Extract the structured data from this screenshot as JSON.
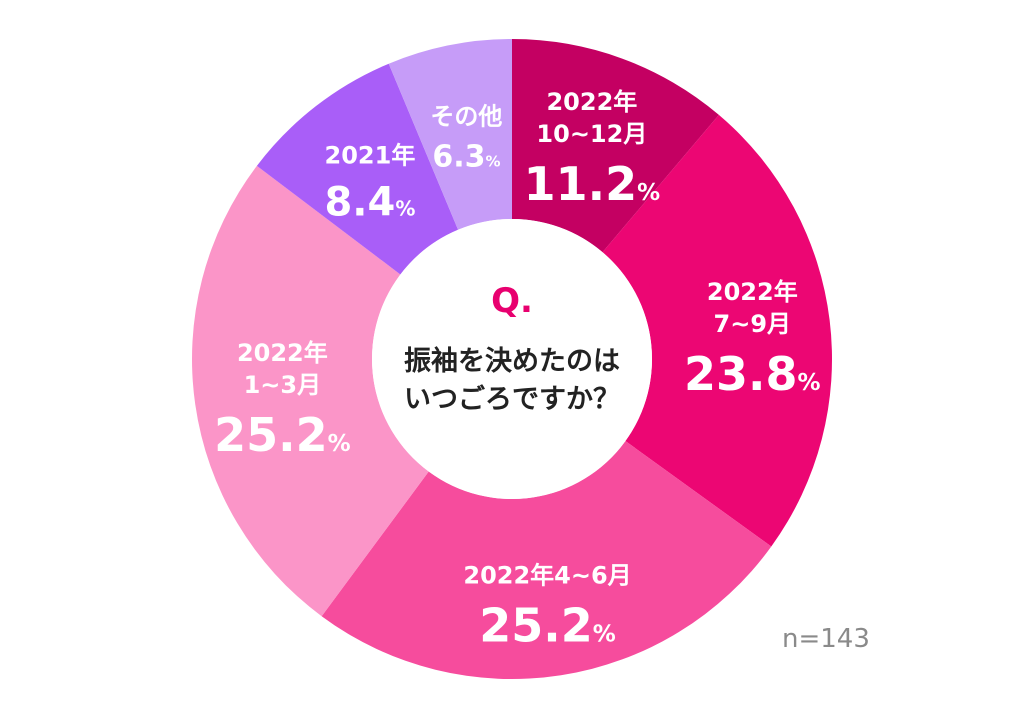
{
  "chart_data": {
    "type": "pie",
    "style": "donut",
    "center": {
      "q_label": "Q.",
      "question_line1": "振袖を決めたのは",
      "question_line2": "いつごろですか？"
    },
    "unit": "%",
    "sample_label": "n=143",
    "slices": [
      {
        "lines": [
          "2022年",
          "10~12月"
        ],
        "value": 11.2,
        "value_label": "11.2",
        "color": "#c40062"
      },
      {
        "lines": [
          "2022年",
          "7~9月"
        ],
        "value": 23.8,
        "value_label": "23.8",
        "color": "#ec0673"
      },
      {
        "lines": [
          "2022年4~6月"
        ],
        "value": 25.2,
        "value_label": "25.2",
        "color": "#f64c9d"
      },
      {
        "lines": [
          "2022年",
          "1~3月"
        ],
        "value": 25.2,
        "value_label": "25.2",
        "color": "#fb95c8"
      },
      {
        "lines": [
          "2021年"
        ],
        "value": 8.4,
        "value_label": "8.4",
        "color": "#a95ef8"
      },
      {
        "lines": [
          "その他"
        ],
        "value": 6.3,
        "value_label": "6.3",
        "color": "#c69cf8"
      }
    ]
  }
}
